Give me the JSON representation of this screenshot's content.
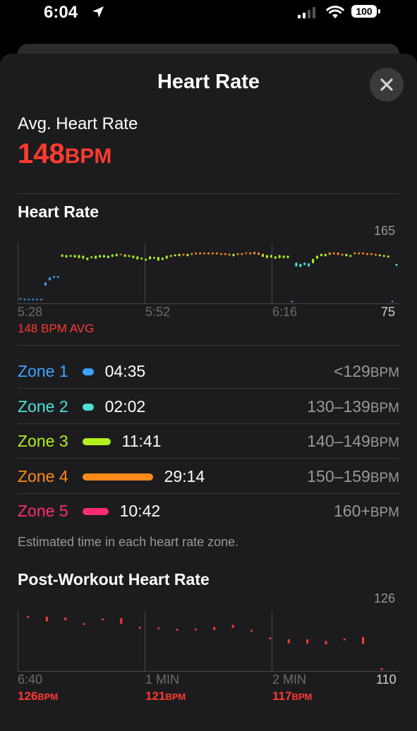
{
  "status_bar": {
    "time": "6:04",
    "battery": "100"
  },
  "sheet": {
    "title": "Heart Rate"
  },
  "summary": {
    "label": "Avg. Heart Rate",
    "value": "148",
    "unit": "BPM"
  },
  "hr_chart": {
    "title": "Heart Rate",
    "y_max_label": "165",
    "x_labels": [
      "5:28",
      "5:52",
      "6:16"
    ],
    "y_min_label": "75",
    "avg_note": "148 BPM AVG"
  },
  "zones": [
    {
      "name": "Zone 1",
      "time": "04:35",
      "range": "<129",
      "unit": "BPM",
      "color": "#3ea3ff",
      "minutes": 4.58
    },
    {
      "name": "Zone 2",
      "time": "02:02",
      "range": "130–139",
      "unit": "BPM",
      "color": "#4de0d6",
      "minutes": 2.03
    },
    {
      "name": "Zone 3",
      "time": "11:41",
      "range": "140–149",
      "unit": "BPM",
      "color": "#b2ef1f",
      "minutes": 11.68
    },
    {
      "name": "Zone 4",
      "time": "29:14",
      "range": "150–159",
      "unit": "BPM",
      "color": "#ff8a1a",
      "minutes": 29.23
    },
    {
      "name": "Zone 5",
      "time": "10:42",
      "range": "160+",
      "unit": "BPM",
      "color": "#ff2d6f",
      "minutes": 10.7
    }
  ],
  "zones_footnote": "Estimated time in each heart rate zone.",
  "post_chart": {
    "title": "Post-Workout Heart Rate",
    "y_max_label": "126",
    "x_labels": [
      "6:40",
      "1 MIN",
      "2 MIN"
    ],
    "y_min_label": "110",
    "values": [
      {
        "value": "126",
        "unit": "BPM"
      },
      {
        "value": "121",
        "unit": "BPM"
      },
      {
        "value": "117",
        "unit": "BPM"
      }
    ]
  },
  "chart_data": [
    {
      "type": "bar",
      "title": "Heart Rate",
      "ylim": [
        75,
        165
      ],
      "x_tick_labels": [
        "5:28",
        "5:52",
        "6:16"
      ],
      "series": [
        {
          "values": [
            [
              80,
              81
            ],
            [
              79,
              80
            ],
            [
              79,
              80
            ],
            [
              79,
              80
            ],
            [
              79,
              80
            ],
            [
              79,
              80
            ],
            [
              101,
              106
            ],
            [
              109,
              114
            ],
            [
              113,
              116
            ],
            [
              113,
              116
            ],
            [
              146,
              150
            ],
            [
              145,
              149
            ],
            [
              146,
              149
            ],
            [
              145,
              149
            ],
            [
              144,
              149
            ],
            [
              143,
              148
            ],
            [
              141,
              145
            ],
            [
              144,
              147
            ],
            [
              143,
              148
            ],
            [
              145,
              149
            ],
            [
              145,
              149
            ],
            [
              144,
              148
            ],
            [
              146,
              150
            ],
            [
              147,
              151
            ],
            [
              149,
              151
            ],
            [
              146,
              150
            ],
            [
              146,
              149
            ],
            [
              144,
              148
            ],
            [
              142,
              147
            ],
            [
              142,
              145
            ],
            [
              140,
              143
            ],
            [
              142,
              147
            ],
            [
              143,
              146
            ],
            [
              140,
              146
            ],
            [
              141,
              145
            ],
            [
              143,
              148
            ],
            [
              146,
              149
            ],
            [
              147,
              150
            ],
            [
              147,
              151
            ],
            [
              148,
              151
            ],
            [
              147,
              151
            ],
            [
              149,
              152
            ],
            [
              150,
              153
            ],
            [
              150,
              153
            ],
            [
              150,
              153
            ],
            [
              150,
              153
            ],
            [
              150,
              153
            ],
            [
              150,
              153
            ],
            [
              149,
              152
            ],
            [
              149,
              152
            ],
            [
              148,
              151
            ],
            [
              147,
              151
            ],
            [
              149,
              152
            ],
            [
              149,
              152
            ],
            [
              151,
              153
            ],
            [
              150,
              153
            ],
            [
              150,
              154
            ],
            [
              149,
              153
            ],
            [
              146,
              151
            ],
            [
              144,
              149
            ],
            [
              145,
              149
            ],
            [
              143,
              147
            ],
            [
              144,
              149
            ],
            [
              144,
              148
            ],
            [
              144,
              148
            ],
            [
              76,
              77
            ],
            [
              131,
              137
            ],
            [
              130,
              135
            ],
            [
              133,
              137
            ],
            [
              131,
              136
            ],
            [
              136,
              143
            ],
            [
              143,
              148
            ],
            [
              147,
              151
            ],
            [
              147,
              151
            ],
            [
              149,
              153
            ],
            [
              150,
              153
            ],
            [
              149,
              153
            ],
            [
              148,
              151
            ],
            [
              147,
              151
            ],
            [
              146,
              149
            ],
            [
              150,
              153
            ],
            [
              150,
              153
            ],
            [
              150,
              153
            ],
            [
              149,
              152
            ],
            [
              149,
              152
            ],
            [
              148,
              151
            ],
            [
              147,
              150
            ],
            [
              146,
              149
            ],
            [
              145,
              148
            ],
            [
              76,
              77
            ],
            [
              132,
              135
            ]
          ]
        }
      ],
      "annotation": "148 BPM AVG"
    },
    {
      "type": "bar",
      "title": "Post-Workout Heart Rate",
      "ylim": [
        110,
        126
      ],
      "x_tick_labels": [
        "6:40",
        "1 MIN",
        "2 MIN"
      ],
      "series": [
        {
          "values": [
            [
              124.8,
              125
            ],
            [
              123.5,
              124.8
            ],
            [
              123.8,
              124.6
            ],
            [
              122.8,
              123
            ],
            [
              124,
              124.3
            ],
            [
              122.8,
              124.4
            ],
            [
              121.7,
              122
            ],
            [
              121.6,
              121.8
            ],
            [
              121.2,
              121.4
            ],
            [
              121.3,
              121.5
            ],
            [
              121.1,
              121.9
            ],
            [
              121.7,
              122.5
            ],
            [
              120.8,
              121.1
            ],
            [
              118.6,
              119
            ],
            [
              117.4,
              118.5
            ],
            [
              117.3,
              118.5
            ],
            [
              117.1,
              118
            ],
            [
              118.4,
              118.7
            ],
            [
              117.2,
              119.1
            ],
            [
              110.1,
              110.4
            ]
          ]
        }
      ],
      "annotations": [
        "126 BPM",
        "121 BPM",
        "117 BPM"
      ]
    }
  ]
}
